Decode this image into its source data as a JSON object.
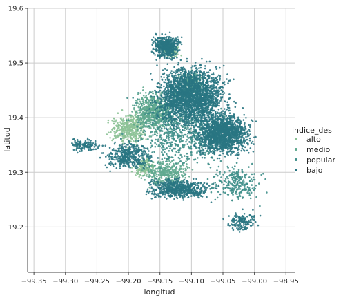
{
  "chart_data": {
    "type": "scatter",
    "title": "",
    "xlabel": "longitud",
    "ylabel": "latitud",
    "xlim": [
      -99.36,
      -98.935
    ],
    "ylim": [
      19.117,
      19.6
    ],
    "xticks": [
      -99.35,
      -99.3,
      -99.25,
      -99.2,
      -99.15,
      -99.1,
      -99.05,
      -99.0,
      -98.95
    ],
    "xtick_labels": [
      "−99.35",
      "−99.30",
      "−99.25",
      "−99.20",
      "−99.15",
      "−99.10",
      "−99.05",
      "−99.00",
      "−98.95"
    ],
    "yticks": [
      19.2,
      19.3,
      19.4,
      19.5,
      19.6
    ],
    "ytick_labels": [
      "19.2",
      "19.3",
      "19.4",
      "19.5",
      "19.6"
    ],
    "grid": true,
    "legend": {
      "title": "indice_des",
      "placement": "right",
      "entries": [
        {
          "name": "alto",
          "color": "#8cc296"
        },
        {
          "name": "medio",
          "color": "#5fa98f"
        },
        {
          "name": "popular",
          "color": "#3f8f8a"
        },
        {
          "name": "bajo",
          "color": "#297682"
        }
      ]
    },
    "series": [
      {
        "name": "alto",
        "color": "#8cc296",
        "regions": [
          {
            "cx": -99.2,
            "cy": 19.38,
            "rx": 0.045,
            "ry": 0.045,
            "n": 380
          },
          {
            "cx": -99.175,
            "cy": 19.31,
            "rx": 0.03,
            "ry": 0.025,
            "n": 160
          },
          {
            "cx": -99.13,
            "cy": 19.52,
            "rx": 0.02,
            "ry": 0.02,
            "n": 50
          }
        ]
      },
      {
        "name": "medio",
        "color": "#5fa98f",
        "regions": [
          {
            "cx": -99.16,
            "cy": 19.41,
            "rx": 0.05,
            "ry": 0.06,
            "n": 600
          },
          {
            "cx": -99.14,
            "cy": 19.3,
            "rx": 0.06,
            "ry": 0.04,
            "n": 300
          },
          {
            "cx": -99.1,
            "cy": 19.46,
            "rx": 0.04,
            "ry": 0.04,
            "n": 200
          }
        ]
      },
      {
        "name": "popular",
        "color": "#3f8f8a",
        "regions": [
          {
            "cx": -99.12,
            "cy": 19.38,
            "rx": 0.12,
            "ry": 0.12,
            "n": 700
          },
          {
            "cx": -99.03,
            "cy": 19.28,
            "rx": 0.06,
            "ry": 0.05,
            "n": 250
          }
        ]
      },
      {
        "name": "bajo",
        "color": "#297682",
        "regions": [
          {
            "cx": -99.1,
            "cy": 19.44,
            "rx": 0.09,
            "ry": 0.09,
            "n": 2200
          },
          {
            "cx": -99.05,
            "cy": 19.37,
            "rx": 0.07,
            "ry": 0.06,
            "n": 1500
          },
          {
            "cx": -99.14,
            "cy": 19.53,
            "rx": 0.035,
            "ry": 0.035,
            "n": 500
          },
          {
            "cx": -99.2,
            "cy": 19.33,
            "rx": 0.06,
            "ry": 0.04,
            "n": 400
          },
          {
            "cx": -99.12,
            "cy": 19.27,
            "rx": 0.08,
            "ry": 0.03,
            "n": 600
          },
          {
            "cx": -99.02,
            "cy": 19.21,
            "rx": 0.04,
            "ry": 0.03,
            "n": 150
          },
          {
            "cx": -99.27,
            "cy": 19.35,
            "rx": 0.035,
            "ry": 0.02,
            "n": 120
          }
        ]
      }
    ]
  }
}
